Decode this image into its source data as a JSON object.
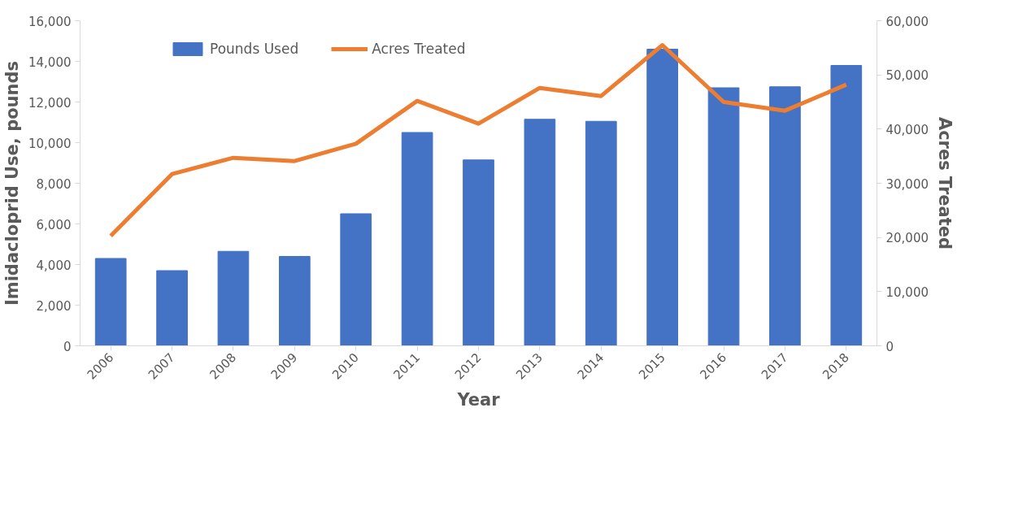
{
  "chart_data": {
    "type": "bar",
    "categories": [
      "2006",
      "2007",
      "2008",
      "2009",
      "2010",
      "2011",
      "2012",
      "2013",
      "2014",
      "2015",
      "2016",
      "2017",
      "2018"
    ],
    "series": [
      {
        "name": "Pounds Used",
        "color": "#4472c4",
        "values": [
          4300,
          3700,
          4650,
          4400,
          6500,
          10500,
          9150,
          11150,
          11050,
          14600,
          12700,
          12750,
          13800
        ]
      },
      {
        "name": "Acres Treated",
        "type": "line",
        "axis": "y2",
        "color": "#ed7d31",
        "values": [
          20300,
          31700,
          34700,
          34100,
          37300,
          45200,
          41000,
          47600,
          46100,
          55500,
          45000,
          43400,
          48200
        ]
      }
    ],
    "xlabel": "Year",
    "ylabel": "Imidacloprid Use, pounds",
    "y2label": "Acres Treated",
    "ylim": [
      0,
      16000
    ],
    "yticks": [
      {
        "value": 0,
        "label": "0"
      },
      {
        "value": 2000,
        "label": "2,000"
      },
      {
        "value": 4000,
        "label": "4,000"
      },
      {
        "value": 6000,
        "label": "6,000"
      },
      {
        "value": 8000,
        "label": "8,000"
      },
      {
        "value": 10000,
        "label": "10,000"
      },
      {
        "value": 12000,
        "label": "12,000"
      },
      {
        "value": 14000,
        "label": "14,000"
      },
      {
        "value": 16000,
        "label": "16,000"
      }
    ],
    "y2lim": [
      0,
      60000
    ],
    "y2ticks": [
      {
        "value": 0,
        "label": "0"
      },
      {
        "value": 10000,
        "label": "10,000"
      },
      {
        "value": 20000,
        "label": "20,000"
      },
      {
        "value": 30000,
        "label": "30,000"
      },
      {
        "value": 40000,
        "label": "40,000"
      },
      {
        "value": 50000,
        "label": "50,000"
      },
      {
        "value": 60000,
        "label": "60,000"
      }
    ],
    "grid": false,
    "legend": "top"
  }
}
